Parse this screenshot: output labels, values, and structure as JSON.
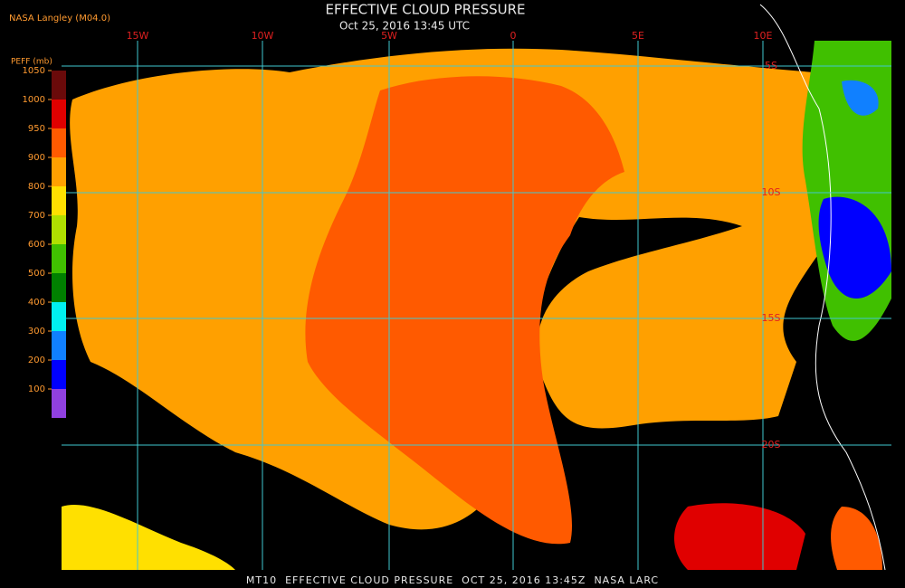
{
  "header": {
    "title": "EFFECTIVE CLOUD PRESSURE",
    "subtitle": "Oct 25, 2016 13:45 UTC",
    "source": "NASA Langley (M04.0)"
  },
  "legend": {
    "title": "PEFF (mb)",
    "ticks": [
      1050,
      1000,
      950,
      900,
      800,
      700,
      600,
      500,
      400,
      300,
      200,
      100
    ],
    "colors": [
      "#6a0a0a",
      "#e00000",
      "#ff5a00",
      "#ffa000",
      "#ffe000",
      "#b0e000",
      "#40c000",
      "#008000",
      "#00f0f0",
      "#1080ff",
      "#0000ff",
      "#9040e0"
    ]
  },
  "map": {
    "lon_labels": [
      "15W",
      "10W",
      "5W",
      "0",
      "5E",
      "10E"
    ],
    "lat_labels": [
      "5S",
      "10S",
      "15S",
      "20S"
    ]
  },
  "footer": "MT10  EFFECTIVE CLOUD PRESSURE  OCT 25, 2016 13:45Z  NASA LARC"
}
